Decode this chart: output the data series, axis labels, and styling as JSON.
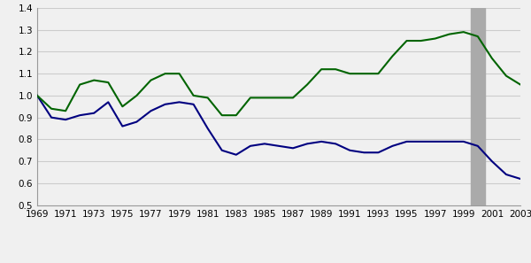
{
  "title": "",
  "xlabel": "",
  "ylabel": "",
  "ylim": [
    0.5,
    1.4
  ],
  "xlim": [
    1969,
    2003
  ],
  "yticks": [
    0.5,
    0.6,
    0.7,
    0.8,
    0.9,
    1.0,
    1.1,
    1.2,
    1.3,
    1.4
  ],
  "xticks": [
    1969,
    1971,
    1973,
    1975,
    1977,
    1979,
    1981,
    1983,
    1985,
    1987,
    1989,
    1991,
    1993,
    1995,
    1997,
    1999,
    2001,
    2003
  ],
  "shaded_region": [
    1999.5,
    2000.5
  ],
  "shaded_color": "#aaaaaa",
  "metro_color": "#000080",
  "nonmetro_color": "#006400",
  "background_color": "#f0f0f0",
  "plot_bg_color": "#f0f0f0",
  "grid_color": "#cccccc",
  "metro_data": {
    "years": [
      1969,
      1970,
      1971,
      1972,
      1973,
      1974,
      1975,
      1976,
      1977,
      1978,
      1979,
      1980,
      1981,
      1982,
      1983,
      1984,
      1985,
      1986,
      1987,
      1988,
      1989,
      1990,
      1991,
      1992,
      1993,
      1994,
      1995,
      1996,
      1997,
      1998,
      1999,
      2000,
      2001,
      2002,
      2003
    ],
    "values": [
      1.0,
      0.9,
      0.89,
      0.91,
      0.92,
      0.97,
      0.86,
      0.88,
      0.93,
      0.96,
      0.97,
      0.96,
      0.85,
      0.75,
      0.73,
      0.77,
      0.78,
      0.77,
      0.76,
      0.78,
      0.79,
      0.78,
      0.75,
      0.74,
      0.74,
      0.77,
      0.79,
      0.79,
      0.79,
      0.79,
      0.79,
      0.77,
      0.7,
      0.64,
      0.62
    ]
  },
  "nonmetro_data": {
    "years": [
      1969,
      1970,
      1971,
      1972,
      1973,
      1974,
      1975,
      1976,
      1977,
      1978,
      1979,
      1980,
      1981,
      1982,
      1983,
      1984,
      1985,
      1986,
      1987,
      1988,
      1989,
      1990,
      1991,
      1992,
      1993,
      1994,
      1995,
      1996,
      1997,
      1998,
      1999,
      2000,
      2001,
      2002,
      2003
    ],
    "values": [
      1.0,
      0.94,
      0.93,
      1.05,
      1.07,
      1.06,
      0.95,
      1.0,
      1.07,
      1.1,
      1.1,
      1.0,
      0.99,
      0.91,
      0.91,
      0.99,
      0.99,
      0.99,
      0.99,
      1.05,
      1.12,
      1.12,
      1.1,
      1.1,
      1.1,
      1.18,
      1.25,
      1.25,
      1.26,
      1.28,
      1.29,
      1.27,
      1.17,
      1.09,
      1.05
    ]
  },
  "legend_shaded_color": "#aaaaaa",
  "fontsize_ticks": 7.5,
  "fontsize_legend": 7.5
}
